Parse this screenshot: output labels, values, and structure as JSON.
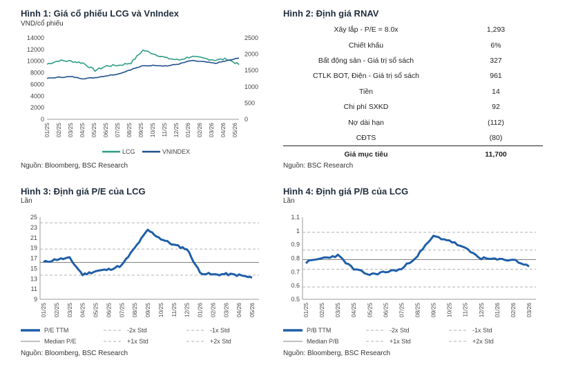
{
  "fig1": {
    "title": "Hình 1: Giá cổ phiếu LCG và VnIndex",
    "unit": "VND/cổ phiếu",
    "source": "Nguồn: Bloomberg, BSC Research"
  },
  "fig2": {
    "title": "Hình 2: Định giá RNAV",
    "source": "Nguồn: BSC Research",
    "rows": [
      {
        "label": "Xây lắp - P/E = 8.0x",
        "value": "1,293"
      },
      {
        "label": "Chiết khấu",
        "value": "6%"
      },
      {
        "label": "Bất động sản - Giá trị sổ sách",
        "value": "327"
      },
      {
        "label": "CTLK BOT, Điện - Giá trị sổ sách",
        "value": "961"
      },
      {
        "label": "Tiền",
        "value": "14"
      },
      {
        "label": "Chi phí SXKD",
        "value": "92"
      },
      {
        "label": "Nợ dài hạn",
        "value": "(112)"
      },
      {
        "label": "CĐTS",
        "value": "(80)"
      }
    ],
    "total": {
      "label": "Giá mục tiêu",
      "value": "11,700"
    }
  },
  "fig3": {
    "title": "Hình 3: Định giá P/E của LCG",
    "unit": "Lần",
    "source": "Nguồn: Bloomberg, BSC Research"
  },
  "fig4": {
    "title": "Hình 4: Định giá P/B của LCG",
    "unit": "Lần",
    "source": "Nguồn: Bloomberg, BSC Research"
  },
  "colors": {
    "lcg": "#2a9d84",
    "vnindex": "#1f4e8c",
    "pe": "#1f5fa8",
    "median": "#808080",
    "dash": "#b0b0b0"
  },
  "chart_data": [
    {
      "type": "line",
      "categories": [
        "01/25",
        "02/25",
        "03/25",
        "04/25",
        "05/25",
        "06/25",
        "07/25",
        "08/25",
        "09/25",
        "10/25",
        "11/25",
        "12/25",
        "01/26",
        "02/26",
        "03/26",
        "04/26",
        "05/26"
      ],
      "y_left_lim": [
        0,
        14000
      ],
      "y_left_ticks": [
        0,
        2000,
        4000,
        6000,
        8000,
        10000,
        12000,
        14000
      ],
      "y_right_lim": [
        0,
        2500
      ],
      "y_right_ticks": [
        0,
        500,
        1000,
        1500,
        2000,
        2500
      ],
      "legend_position": "bottom",
      "series": [
        {
          "name": "LCG",
          "axis": "left",
          "color": "#2a9d84",
          "values": [
            9500,
            10100,
            10000,
            9700,
            8400,
            9200,
            9300,
            9700,
            11900,
            11200,
            10500,
            10200,
            10800,
            10500,
            10200,
            10400,
            9400
          ]
        },
        {
          "name": "VNINDEX",
          "axis": "right",
          "color": "#1f4e8c",
          "values": [
            1260,
            1290,
            1310,
            1250,
            1280,
            1340,
            1400,
            1530,
            1640,
            1660,
            1640,
            1700,
            1800,
            1770,
            1720,
            1800,
            1880
          ]
        }
      ]
    },
    {
      "type": "line",
      "categories": [
        "01/25",
        "02/25",
        "03/25",
        "04/25",
        "05/25",
        "06/25",
        "07/25",
        "08/25",
        "09/25",
        "10/25",
        "11/25",
        "12/25",
        "01/26",
        "02/26",
        "03/26",
        "04/26",
        "05/26"
      ],
      "ylim": [
        9,
        25
      ],
      "y_ticks": [
        9,
        11,
        13,
        15,
        17,
        19,
        21,
        23,
        25
      ],
      "legend_position": "bottom",
      "reference_lines": [
        {
          "name": "Median P/E",
          "value": 16.2,
          "style": "solid"
        },
        {
          "name": "-2x Std",
          "value": 8.4,
          "style": "dashed"
        },
        {
          "name": "-1x Std",
          "value": 13.7,
          "style": "dashed"
        },
        {
          "name": "+1x Std",
          "value": 18.8,
          "style": "dashed"
        },
        {
          "name": "+2x Std",
          "value": 23.9,
          "style": "dashed"
        }
      ],
      "series": [
        {
          "name": "P/E TTM",
          "color": "#1f5fa8",
          "values": [
            16.2,
            16.8,
            17.0,
            13.8,
            14.5,
            14.8,
            15.6,
            19.0,
            22.5,
            20.8,
            19.6,
            18.8,
            14.2,
            13.8,
            13.9,
            13.7,
            13.2
          ]
        }
      ]
    },
    {
      "type": "line",
      "categories": [
        "01/25",
        "02/25",
        "03/25",
        "04/25",
        "05/25",
        "06/25",
        "07/25",
        "08/25",
        "09/25",
        "10/25",
        "11/25",
        "12/25",
        "01/26",
        "02/26",
        "03/26"
      ],
      "ylim": [
        0.5,
        1.1
      ],
      "y_ticks": [
        0.5,
        0.6,
        0.7,
        0.8,
        0.9,
        1,
        1.1
      ],
      "legend_position": "bottom",
      "reference_lines": [
        {
          "name": "Median P/B",
          "value": 0.79,
          "style": "solid"
        },
        {
          "name": "-2x Std",
          "value": 0.59,
          "style": "dashed"
        },
        {
          "name": "-1x Std",
          "value": 0.72,
          "style": "dashed"
        },
        {
          "name": "+1x Std",
          "value": 0.86,
          "style": "dashed"
        },
        {
          "name": "+2x Std",
          "value": 0.99,
          "style": "dashed"
        }
      ],
      "series": [
        {
          "name": "P/B TTM",
          "color": "#1f5fa8",
          "values": [
            0.77,
            0.8,
            0.82,
            0.72,
            0.68,
            0.7,
            0.72,
            0.82,
            0.96,
            0.93,
            0.87,
            0.8,
            0.79,
            0.79,
            0.74
          ]
        }
      ]
    }
  ]
}
